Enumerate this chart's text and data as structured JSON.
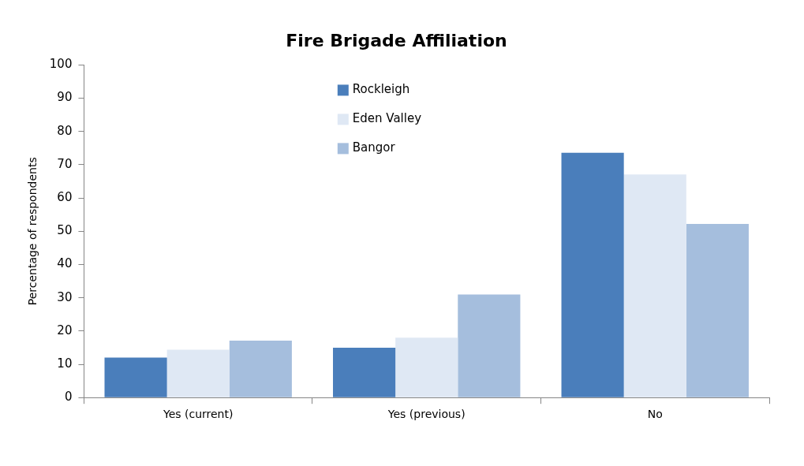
{
  "chart_data": {
    "type": "bar",
    "title": "Fire Brigade Affiliation",
    "ylabel": "Percentage of respondents",
    "categories": [
      "Yes (current)",
      "Yes (previous)",
      "No"
    ],
    "series": [
      {
        "name": "Rockleigh",
        "color": "#4a7ebb",
        "values": [
          12,
          15,
          73.6
        ]
      },
      {
        "name": "Eden Valley",
        "color": "#dfe8f4",
        "values": [
          14.4,
          18,
          67.1
        ]
      },
      {
        "name": "Bangor",
        "color": "#a5bedd",
        "values": [
          17.1,
          31,
          52.2
        ]
      }
    ],
    "ylim": [
      0,
      100
    ],
    "yticks": [
      0,
      10,
      20,
      30,
      40,
      50,
      60,
      70,
      80,
      90,
      100
    ],
    "grid": false,
    "legend": "top"
  }
}
